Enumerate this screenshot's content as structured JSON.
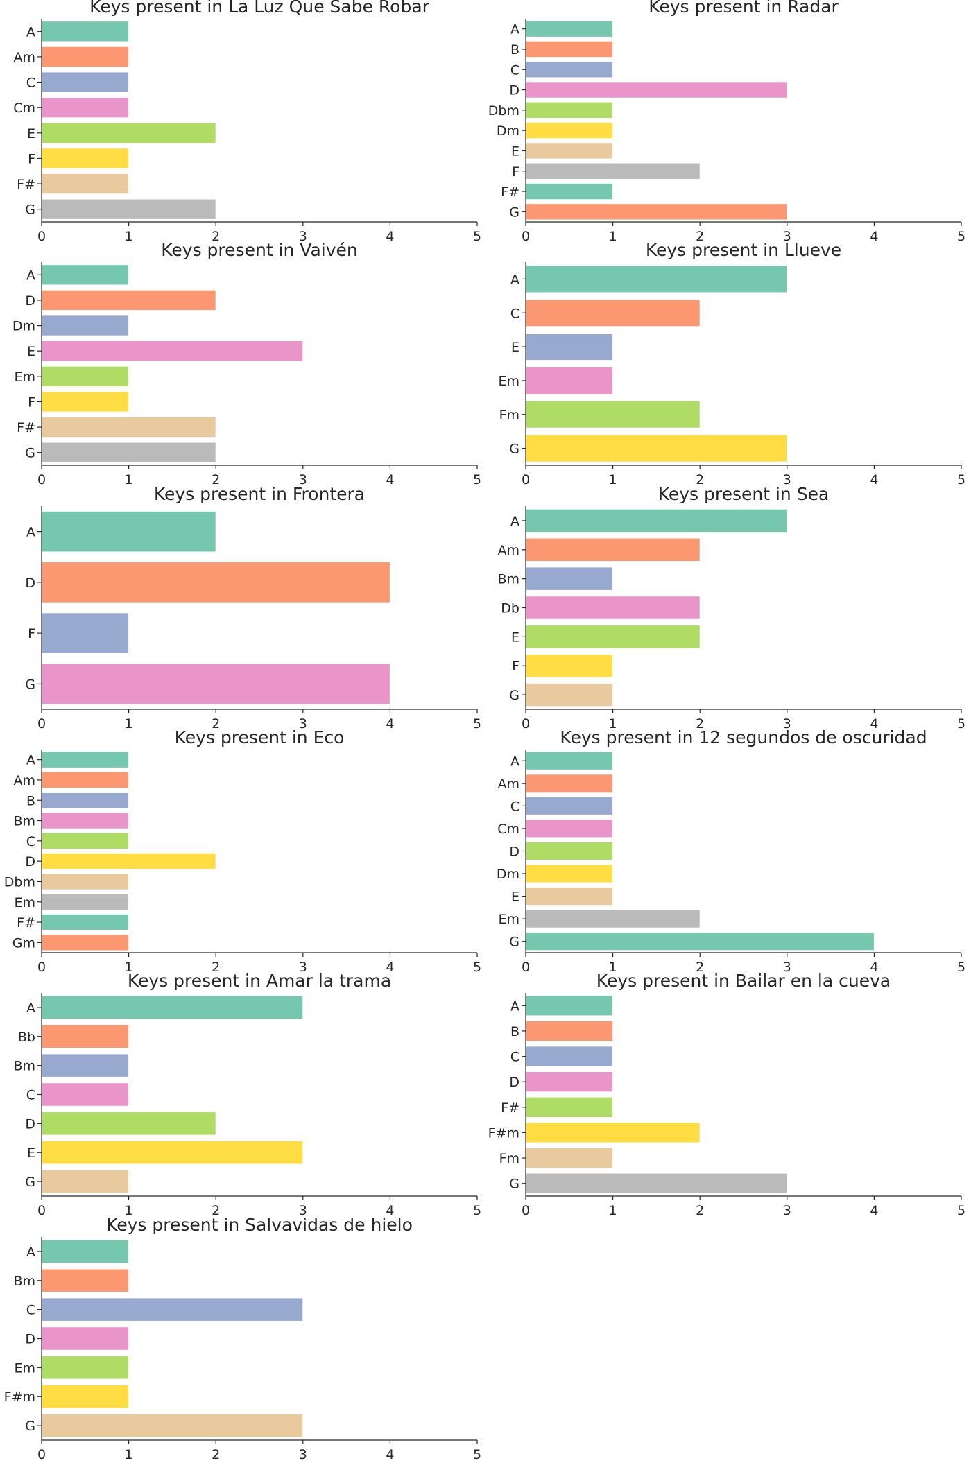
{
  "palette": [
    "#66c2a5",
    "#fc8d62",
    "#8da0cb",
    "#e78ac3",
    "#a6d854",
    "#ffd92f",
    "#e5c494",
    "#b3b3b3"
  ],
  "axis_color": "#262626",
  "chart_data": [
    {
      "type": "bar",
      "orientation": "horizontal",
      "title": "Keys present in La Luz Que Sabe Robar",
      "categories": [
        "A",
        "Am",
        "C",
        "Cm",
        "E",
        "F",
        "F#",
        "G"
      ],
      "values": [
        1,
        1,
        1,
        1,
        2,
        1,
        1,
        2
      ],
      "xlim": [
        0,
        5
      ],
      "xticks": [
        "0",
        "1",
        "2",
        "3",
        "4",
        "5"
      ],
      "grid": false
    },
    {
      "type": "bar",
      "orientation": "horizontal",
      "title": "Keys present in Radar",
      "categories": [
        "A",
        "B",
        "C",
        "D",
        "Dbm",
        "Dm",
        "E",
        "F",
        "F#",
        "G"
      ],
      "values": [
        1,
        1,
        1,
        3,
        1,
        1,
        1,
        2,
        1,
        3
      ],
      "xlim": [
        0,
        5
      ],
      "xticks": [
        "0",
        "1",
        "2",
        "3",
        "4",
        "5"
      ],
      "grid": false
    },
    {
      "type": "bar",
      "orientation": "horizontal",
      "title": "Keys present in Vaivén",
      "categories": [
        "A",
        "D",
        "Dm",
        "E",
        "Em",
        "F",
        "F#",
        "G"
      ],
      "values": [
        1,
        2,
        1,
        3,
        1,
        1,
        2,
        2
      ],
      "xlim": [
        0,
        5
      ],
      "xticks": [
        "0",
        "1",
        "2",
        "3",
        "4",
        "5"
      ],
      "grid": false
    },
    {
      "type": "bar",
      "orientation": "horizontal",
      "title": "Keys present in Llueve",
      "categories": [
        "A",
        "C",
        "E",
        "Em",
        "Fm",
        "G"
      ],
      "values": [
        3,
        2,
        1,
        1,
        2,
        3
      ],
      "xlim": [
        0,
        5
      ],
      "xticks": [
        "0",
        "1",
        "2",
        "3",
        "4",
        "5"
      ],
      "grid": false
    },
    {
      "type": "bar",
      "orientation": "horizontal",
      "title": "Keys present in Frontera",
      "categories": [
        "A",
        "D",
        "F",
        "G"
      ],
      "values": [
        2,
        4,
        1,
        4
      ],
      "xlim": [
        0,
        5
      ],
      "xticks": [
        "0",
        "1",
        "2",
        "3",
        "4",
        "5"
      ],
      "grid": false
    },
    {
      "type": "bar",
      "orientation": "horizontal",
      "title": "Keys present in Sea",
      "categories": [
        "A",
        "Am",
        "Bm",
        "Db",
        "E",
        "F",
        "G"
      ],
      "values": [
        3,
        2,
        1,
        2,
        2,
        1,
        1
      ],
      "xlim": [
        0,
        5
      ],
      "xticks": [
        "0",
        "1",
        "2",
        "3",
        "4",
        "5"
      ],
      "grid": false
    },
    {
      "type": "bar",
      "orientation": "horizontal",
      "title": "Keys present in Eco",
      "categories": [
        "A",
        "Am",
        "B",
        "Bm",
        "C",
        "D",
        "Dbm",
        "Em",
        "F#",
        "Gm"
      ],
      "values": [
        1,
        1,
        1,
        1,
        1,
        2,
        1,
        1,
        1,
        1
      ],
      "xlim": [
        0,
        5
      ],
      "xticks": [
        "0",
        "1",
        "2",
        "3",
        "4",
        "5"
      ],
      "grid": false
    },
    {
      "type": "bar",
      "orientation": "horizontal",
      "title": "Keys present in 12 segundos de oscuridad",
      "categories": [
        "A",
        "Am",
        "C",
        "Cm",
        "D",
        "Dm",
        "E",
        "Em",
        "G"
      ],
      "values": [
        1,
        1,
        1,
        1,
        1,
        1,
        1,
        2,
        4
      ],
      "xlim": [
        0,
        5
      ],
      "xticks": [
        "0",
        "1",
        "2",
        "3",
        "4",
        "5"
      ],
      "grid": false
    },
    {
      "type": "bar",
      "orientation": "horizontal",
      "title": "Keys present in Amar la trama",
      "categories": [
        "A",
        "Bb",
        "Bm",
        "C",
        "D",
        "E",
        "G"
      ],
      "values": [
        3,
        1,
        1,
        1,
        2,
        3,
        1
      ],
      "xlim": [
        0,
        5
      ],
      "xticks": [
        "0",
        "1",
        "2",
        "3",
        "4",
        "5"
      ],
      "grid": false
    },
    {
      "type": "bar",
      "orientation": "horizontal",
      "title": "Keys present in Bailar en la cueva",
      "categories": [
        "A",
        "B",
        "C",
        "D",
        "F#",
        "F#m",
        "Fm",
        "G"
      ],
      "values": [
        1,
        1,
        1,
        1,
        1,
        2,
        1,
        3
      ],
      "xlim": [
        0,
        5
      ],
      "xticks": [
        "0",
        "1",
        "2",
        "3",
        "4",
        "5"
      ],
      "grid": false
    },
    {
      "type": "bar",
      "orientation": "horizontal",
      "title": "Keys present in Salvavidas de hielo",
      "categories": [
        "A",
        "Bm",
        "C",
        "D",
        "Em",
        "F#m",
        "G"
      ],
      "values": [
        1,
        1,
        3,
        1,
        1,
        1,
        3
      ],
      "xlim": [
        0,
        5
      ],
      "xticks": [
        "0",
        "1",
        "2",
        "3",
        "4",
        "5"
      ],
      "grid": false
    }
  ]
}
